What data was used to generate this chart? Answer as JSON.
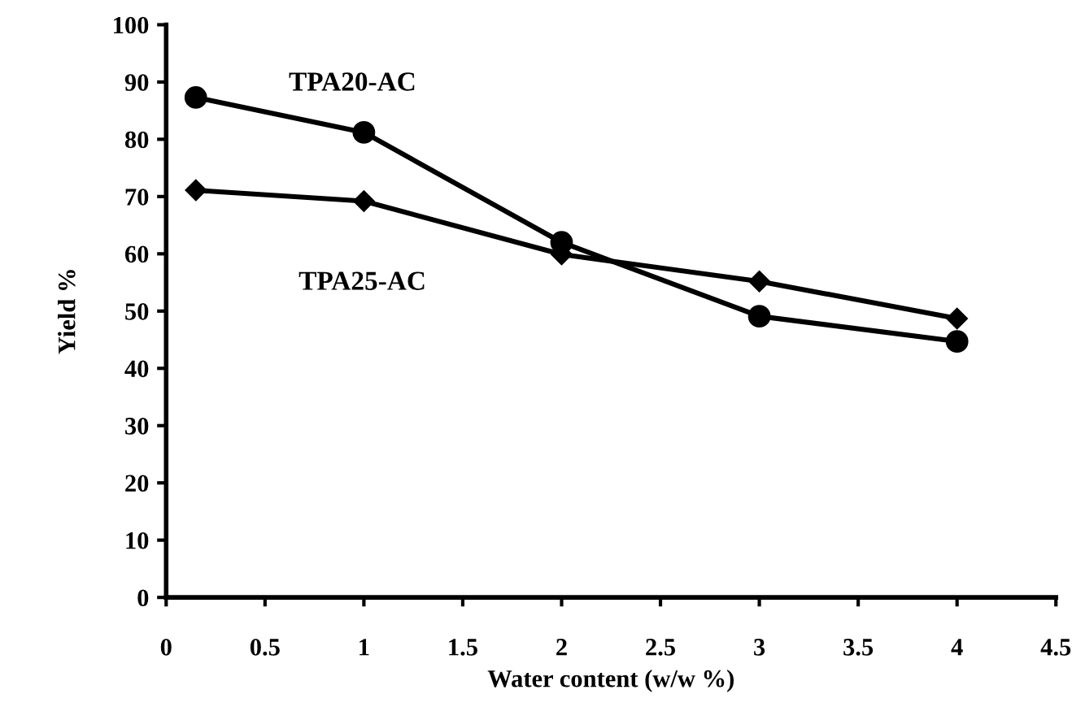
{
  "chart_data": {
    "type": "line",
    "xlabel": "Water content (w/w %)",
    "ylabel": "Yield %",
    "xlim": [
      0,
      4.5
    ],
    "xticks": [
      0,
      0.5,
      1,
      1.5,
      2,
      2.5,
      3,
      3.5,
      4,
      4.5
    ],
    "ylim": [
      0,
      100
    ],
    "yticks": [
      0,
      10,
      20,
      30,
      40,
      50,
      60,
      70,
      80,
      90,
      100
    ],
    "grid": false,
    "legend": false,
    "line_style": "solid",
    "series": [
      {
        "name": "TPA20-AC",
        "color": "#000000",
        "marker": "circle",
        "x": [
          0.15,
          1,
          2,
          3,
          4
        ],
        "values": [
          87.3,
          81.2,
          62,
          49.1,
          44.7
        ]
      },
      {
        "name": "TPA25-AC",
        "color": "#000000",
        "marker": "diamond",
        "x": [
          0.15,
          1,
          2,
          3,
          4
        ],
        "values": [
          71.1,
          69.2,
          59.9,
          55.2,
          48.7
        ]
      }
    ]
  }
}
